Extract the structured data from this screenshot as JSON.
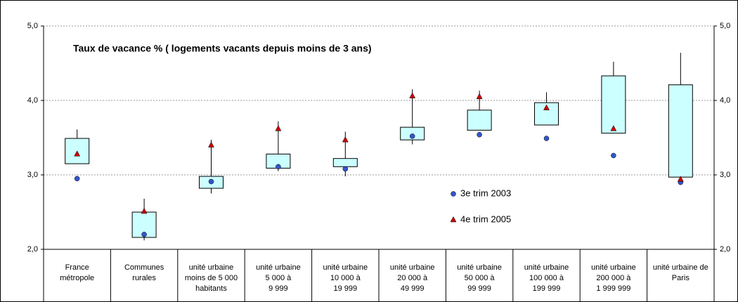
{
  "chart_data": {
    "type": "box",
    "title": "Taux de vacance % ( logements vacants depuis moins de 3 ans)",
    "categories": [
      [
        "France",
        "métropole"
      ],
      [
        "Communes",
        "rurales"
      ],
      [
        "unité urbaine",
        "moins de 5 000",
        "habitants"
      ],
      [
        "unité urbaine",
        "5 000 à",
        "9 999"
      ],
      [
        "unité urbaine",
        "10 000 à",
        "19 999"
      ],
      [
        "unité urbaine",
        "20 000 à",
        "49 999"
      ],
      [
        "unité urbaine",
        "50 000 à",
        "99 999"
      ],
      [
        "unité urbaine",
        "100 000 à",
        "199 999"
      ],
      [
        "unité urbaine",
        "200 000 à",
        "1 999 999"
      ],
      [
        "unité urbaine de",
        "Paris"
      ]
    ],
    "box": {
      "color": "#ccffff",
      "low": [
        3.15,
        2.12,
        2.75,
        3.05,
        2.98,
        3.41,
        3.6,
        3.67,
        3.56,
        2.97
      ],
      "q1": [
        3.15,
        2.16,
        2.82,
        3.09,
        3.11,
        3.47,
        3.6,
        3.67,
        3.56,
        2.97
      ],
      "q3": [
        3.49,
        2.5,
        2.98,
        3.28,
        3.22,
        3.64,
        3.87,
        3.97,
        4.33,
        4.21
      ],
      "high": [
        3.61,
        2.68,
        3.47,
        3.72,
        3.58,
        4.15,
        4.13,
        4.11,
        4.52,
        4.64
      ]
    },
    "series": [
      {
        "name": "3e trim 2003",
        "color": "#3355cc",
        "marker": "circle",
        "values": [
          2.95,
          2.2,
          2.91,
          3.11,
          3.08,
          3.52,
          3.54,
          3.49,
          3.26,
          2.9
        ]
      },
      {
        "name": "4e trim 2005",
        "color": "#cc0000",
        "marker": "triangle",
        "values": [
          3.28,
          2.51,
          3.4,
          3.62,
          3.47,
          4.06,
          4.05,
          3.9,
          3.62,
          2.94
        ]
      }
    ],
    "ylim": [
      2,
      5
    ],
    "yticks": [
      {
        "value": 2,
        "label": "2,0"
      },
      {
        "value": 3,
        "label": "3,0"
      },
      {
        "value": 4,
        "label": "4,0"
      },
      {
        "value": 5,
        "label": "5,0"
      }
    ],
    "grid": true
  }
}
